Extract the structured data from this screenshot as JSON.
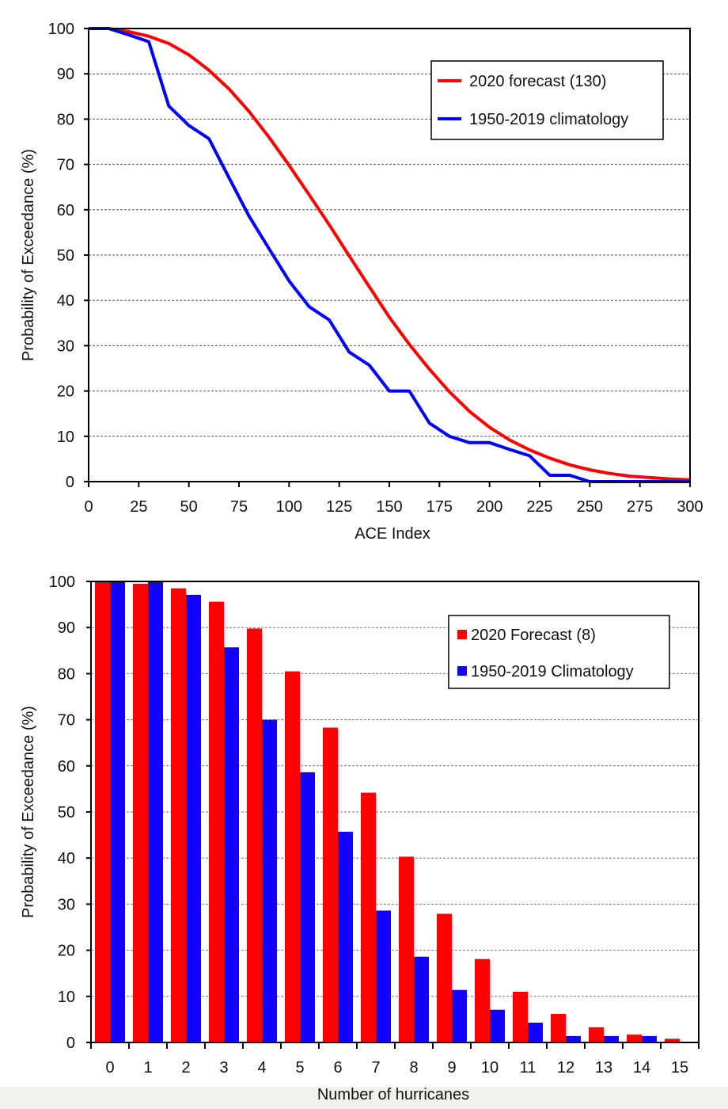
{
  "chart_data": [
    {
      "type": "line",
      "title": "",
      "xlabel": "ACE Index",
      "ylabel": "Probability of Exceedance (%)",
      "xlim": [
        0,
        300
      ],
      "ylim": [
        0,
        100
      ],
      "xticks": [
        0,
        25,
        50,
        75,
        100,
        125,
        150,
        175,
        200,
        225,
        250,
        275,
        300
      ],
      "yticks": [
        0,
        10,
        20,
        30,
        40,
        50,
        60,
        70,
        80,
        90,
        100
      ],
      "grid": "horizontal-dashed",
      "legend_position": "top-right",
      "series": [
        {
          "name": "2020 forecast (130)",
          "color": "#ff0000",
          "x": [
            0,
            10,
            20,
            30,
            40,
            50,
            60,
            70,
            80,
            90,
            100,
            110,
            120,
            130,
            140,
            150,
            160,
            170,
            180,
            190,
            200,
            210,
            220,
            230,
            240,
            250,
            260,
            270,
            280,
            290,
            300
          ],
          "y": [
            100,
            100,
            99.3,
            98.3,
            96.7,
            94.2,
            90.8,
            86.7,
            81.7,
            76.0,
            69.8,
            63.3,
            56.7,
            49.8,
            43.0,
            36.3,
            30.3,
            24.8,
            19.8,
            15.5,
            12.0,
            9.2,
            7.0,
            5.2,
            3.7,
            2.6,
            1.8,
            1.2,
            0.9,
            0.6,
            0.4
          ]
        },
        {
          "name": "1950-2019 climatology",
          "color": "#0000ff",
          "x": [
            0,
            10,
            20,
            30,
            40,
            50,
            60,
            70,
            80,
            90,
            100,
            110,
            120,
            130,
            140,
            150,
            160,
            170,
            180,
            190,
            200,
            210,
            220,
            230,
            240,
            250,
            260,
            270,
            280,
            290,
            300
          ],
          "y": [
            100,
            100,
            98.6,
            97.1,
            82.9,
            78.6,
            75.7,
            67.1,
            58.6,
            51.4,
            44.3,
            38.6,
            35.7,
            28.6,
            25.7,
            20.0,
            20.0,
            12.9,
            10.0,
            8.6,
            8.6,
            7.1,
            5.7,
            1.4,
            1.4,
            0,
            0,
            0,
            0,
            0,
            0
          ]
        }
      ]
    },
    {
      "type": "bar",
      "title": "",
      "xlabel": "Number of hurricanes",
      "ylabel": "Probability of Exceedance (%)",
      "ylim": [
        0,
        100
      ],
      "yticks": [
        0,
        10,
        20,
        30,
        40,
        50,
        60,
        70,
        80,
        90,
        100
      ],
      "grid": "horizontal-dashed",
      "legend_position": "top-right",
      "categories": [
        "0",
        "1",
        "2",
        "3",
        "4",
        "5",
        "6",
        "7",
        "8",
        "9",
        "10",
        "11",
        "12",
        "13",
        "14",
        "15"
      ],
      "series": [
        {
          "name": "2020 Forecast (8)",
          "color": "#ff0000",
          "values": [
            100,
            99.5,
            98.5,
            95.6,
            89.8,
            80.5,
            68.3,
            54.2,
            40.3,
            27.9,
            18.1,
            11.0,
            6.2,
            3.3,
            1.7,
            0.8
          ]
        },
        {
          "name": "1950-2019 Climatology",
          "color": "#1400ff",
          "values": [
            100,
            100,
            97.1,
            85.7,
            70.0,
            58.6,
            45.7,
            28.6,
            18.6,
            11.4,
            7.1,
            4.3,
            1.4,
            1.4,
            1.4,
            0
          ]
        }
      ]
    }
  ]
}
